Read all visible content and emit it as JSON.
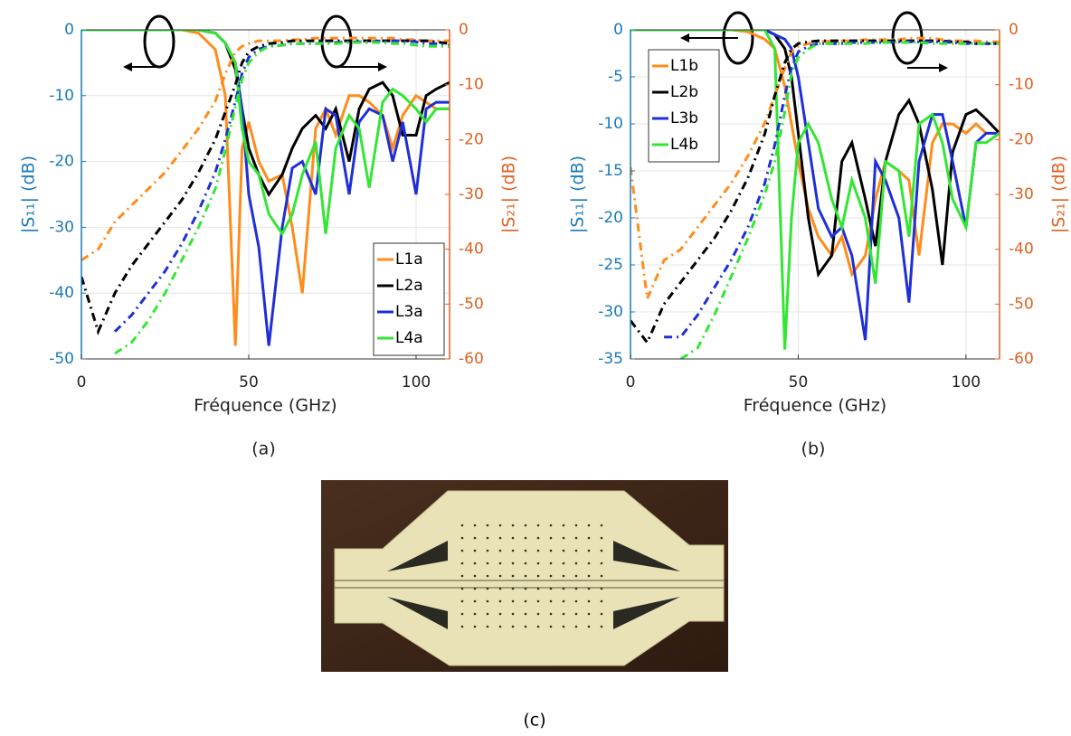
{
  "chart_data": [
    {
      "type": "line",
      "x_label": "Fréquence (GHz)",
      "y_label": "|S₁₁| (dB)",
      "y2_label": "|S₂₁| (dB)",
      "caption": "(a)",
      "xlim": [
        0,
        110
      ],
      "xticks": [
        0,
        50,
        100
      ],
      "ylim": [
        -50,
        0
      ],
      "yticks": [
        -50,
        -40,
        -30,
        -20,
        -10,
        0
      ],
      "y2lim": [
        -60,
        0
      ],
      "y2ticks": [
        -60,
        -50,
        -40,
        -30,
        -20,
        -10,
        0
      ],
      "grid": true,
      "legend": "lower right",
      "y_color": "#1a7ab8",
      "y2_color": "#e0601f",
      "x": [
        0,
        5,
        10,
        15,
        20,
        25,
        30,
        35,
        40,
        43,
        46,
        48,
        50,
        53,
        56,
        60,
        63,
        66,
        70,
        73,
        76,
        80,
        83,
        86,
        90,
        93,
        96,
        100,
        103,
        106,
        110
      ],
      "series": [
        {
          "name": "L1a",
          "color": "#ff8c1a",
          "line_style": "solid",
          "values": [
            0,
            0,
            0,
            0,
            0,
            0,
            0,
            -0.5,
            -3,
            -10,
            -48,
            -18,
            -14,
            -20,
            -23,
            -22,
            -30,
            -40,
            -15,
            -12,
            -16,
            -10,
            -10,
            -11,
            -13,
            -18,
            -13,
            -10,
            -11,
            -12,
            -12
          ]
        },
        {
          "name": "L2a",
          "color": "#000000",
          "line_style": "solid",
          "values": [
            0,
            0,
            0,
            0,
            0,
            0,
            0,
            0,
            -0.5,
            -2,
            -6,
            -12,
            -18,
            -22,
            -25,
            -22,
            -18,
            -15,
            -13,
            -15,
            -12,
            -20,
            -12,
            -9,
            -8,
            -10,
            -16,
            -16,
            -10,
            -9,
            -8
          ]
        },
        {
          "name": "L3a",
          "color": "#1f2fd6",
          "line_style": "solid",
          "values": [
            0,
            0,
            0,
            0,
            0,
            0,
            0,
            0,
            -0.5,
            -2,
            -5,
            -12,
            -25,
            -33,
            -48,
            -30,
            -21,
            -20,
            -25,
            -12,
            -13,
            -25,
            -14,
            -12,
            -13,
            -20,
            -14,
            -25,
            -12,
            -11,
            -11
          ]
        },
        {
          "name": "L4a",
          "color": "#33e633",
          "line_style": "solid",
          "values": [
            0,
            0,
            0,
            0,
            0,
            0,
            0,
            0,
            -0.5,
            -2,
            -5,
            -15,
            -20,
            -22,
            -28,
            -31,
            -28,
            -22,
            -17,
            -31,
            -18,
            -13,
            -15,
            -24,
            -11,
            -9,
            -10,
            -12,
            -14,
            -12,
            -12
          ]
        },
        {
          "color": "#ff8c1a",
          "line_style": "dashed",
          "axis": "y2",
          "values": [
            -42,
            -40,
            -35,
            -32,
            -29,
            -26,
            -22,
            -18,
            -13,
            -8,
            -4,
            -3,
            -2.5,
            -2,
            -2,
            -2,
            -1.8,
            -1.8,
            -1.5,
            -1.5,
            -1.5,
            -1.5,
            -1.5,
            -1.5,
            -1.5,
            -1.5,
            -1.8,
            -1.8,
            -2,
            -2,
            -2
          ]
        },
        {
          "color": "#000000",
          "line_style": "dashed",
          "axis": "y2",
          "values": [
            -45,
            -55,
            -48,
            -43,
            -39,
            -35,
            -31,
            -26,
            -20,
            -15,
            -10,
            -6,
            -4,
            -3,
            -2.5,
            -2.3,
            -2,
            -2,
            -2,
            -2,
            -2,
            -2,
            -2,
            -2,
            -2,
            -2,
            -2,
            -2,
            -2,
            -2.2,
            -2.5
          ]
        },
        {
          "color": "#1f2fd6",
          "line_style": "dashed",
          "axis": "y2",
          "values": [
            null,
            null,
            -55,
            -52,
            -48,
            -44,
            -39,
            -33,
            -26,
            -20,
            -13,
            -8,
            -5,
            -3.5,
            -3,
            -2.8,
            -2.5,
            -2.5,
            -2.5,
            -2.3,
            -2.3,
            -2.2,
            -2.2,
            -2.2,
            -2,
            -2,
            -2,
            -2.2,
            -2.5,
            -2.5,
            -2.8
          ]
        },
        {
          "color": "#33e633",
          "line_style": "dashed",
          "axis": "y2",
          "values": [
            -58,
            null,
            -59,
            -57,
            -53,
            -48,
            -42,
            -36,
            -29,
            -22,
            -14,
            -9,
            -6,
            -4,
            -3,
            -2.8,
            -2.5,
            -2.5,
            -2.5,
            -2.5,
            -2.5,
            -2.3,
            -2.3,
            -2.3,
            -2.3,
            -2.5,
            -2.5,
            -2.8,
            -3,
            -3,
            -3
          ]
        }
      ]
    },
    {
      "type": "line",
      "x_label": "Fréquence (GHz)",
      "y_label": "|S₁₁| (dB)",
      "y2_label": "|S₂₁| (dB)",
      "caption": "(b)",
      "xlim": [
        0,
        110
      ],
      "xticks": [
        0,
        50,
        100
      ],
      "ylim": [
        -35,
        0
      ],
      "yticks": [
        -35,
        -30,
        -25,
        -20,
        -15,
        -10,
        -5,
        0
      ],
      "y2lim": [
        -60,
        0
      ],
      "y2ticks": [
        -60,
        -50,
        -40,
        -30,
        -20,
        -10,
        0
      ],
      "grid": true,
      "legend": "upper left",
      "y_color": "#1a7ab8",
      "y2_color": "#e0601f",
      "x": [
        0,
        5,
        10,
        15,
        20,
        25,
        30,
        35,
        40,
        43,
        46,
        48,
        50,
        53,
        56,
        60,
        63,
        66,
        70,
        73,
        76,
        80,
        83,
        86,
        90,
        93,
        96,
        100,
        103,
        106,
        110
      ],
      "series": [
        {
          "name": "L1b",
          "color": "#ff8c1a",
          "line_style": "solid",
          "values": [
            0,
            0,
            0,
            0,
            0,
            0,
            0,
            -0.2,
            -1,
            -2,
            -6,
            -10,
            -14,
            -19,
            -22,
            -24,
            -22,
            -26,
            -24,
            -18,
            -14,
            -15,
            -16,
            -24,
            -12,
            -10,
            -10,
            -11,
            -10,
            -11,
            -11
          ]
        },
        {
          "name": "L2b",
          "color": "#000000",
          "line_style": "solid",
          "values": [
            0,
            0,
            0,
            0,
            0,
            0,
            0,
            0,
            0,
            -0.5,
            -2,
            -5,
            -11,
            -20,
            -26,
            -24,
            -14,
            -12,
            -18,
            -23,
            -14,
            -9,
            -7.5,
            -10,
            -17,
            -25,
            -13,
            -9,
            -8.5,
            -9.5,
            -11
          ]
        },
        {
          "name": "L3b",
          "color": "#1f2fd6",
          "line_style": "solid",
          "values": [
            0,
            0,
            0,
            0,
            0,
            0,
            0,
            0,
            0,
            -0.5,
            -1,
            -2,
            -5,
            -12,
            -19,
            -22,
            -21,
            -24,
            -33,
            -14,
            -16,
            -20,
            -29,
            -14,
            -9,
            -9,
            -14,
            -21,
            -12,
            -11,
            -11
          ]
        },
        {
          "name": "L4b",
          "color": "#33e633",
          "line_style": "solid",
          "values": [
            0,
            0,
            0,
            0,
            0,
            0,
            0,
            0,
            0,
            -2,
            -34,
            -20,
            -12,
            -10,
            -12,
            -18,
            -21,
            -16,
            -20,
            -27,
            -14,
            -15,
            -22,
            -10,
            -9,
            -12,
            -18,
            -21,
            -12,
            -12,
            -11
          ]
        },
        {
          "color": "#ff8c1a",
          "line_style": "dashed",
          "axis": "y2",
          "values": [
            -25,
            -49,
            -42,
            -40,
            -36,
            -32,
            -28,
            -23,
            -17,
            -12,
            -7,
            -4,
            -3,
            -2.5,
            -2.2,
            -2,
            -2,
            -2,
            -1.8,
            -1.8,
            -1.8,
            -1.8,
            -1.5,
            -1.5,
            -1.5,
            -1.8,
            -2,
            -2,
            -2,
            -2.2,
            -2.2
          ]
        },
        {
          "color": "#000000",
          "line_style": "dashed",
          "axis": "y2",
          "values": [
            -53,
            -57,
            -50,
            -46,
            -42,
            -38,
            -33,
            -27,
            -19,
            -12,
            -6,
            -3.5,
            -2.5,
            -2.2,
            -2,
            -2,
            -2,
            -2,
            -2,
            -2,
            -2,
            -2,
            -2,
            -2,
            -2,
            -2,
            -2.2,
            -2.2,
            -2.5,
            -2.5,
            -2.5
          ]
        },
        {
          "color": "#1f2fd6",
          "line_style": "dashed",
          "axis": "y2",
          "values": [
            null,
            null,
            -56,
            -56,
            -52,
            -47,
            -42,
            -36,
            -28,
            -21,
            -12,
            -7,
            -4,
            -3,
            -2.5,
            -2.5,
            -2.5,
            -2.3,
            -2.3,
            -2.3,
            -2.3,
            -2.2,
            -2.2,
            -2.2,
            -2.2,
            -2.2,
            -2.3,
            -2.5,
            -2.5,
            -2.5,
            -2.5
          ]
        },
        {
          "color": "#33e633",
          "line_style": "dashed",
          "axis": "y2",
          "values": [
            -28,
            null,
            null,
            -60,
            -58,
            -52,
            -45,
            -38,
            -30,
            -24,
            -15,
            -8,
            -5,
            -3.5,
            -2.5,
            -2.5,
            -2.5,
            -2.5,
            -2.5,
            -2.3,
            -2.3,
            -2.3,
            -2.3,
            -2.3,
            -2.5,
            -2.5,
            -2.5,
            -2.5,
            -2.5,
            -2.5,
            -2.5
          ]
        }
      ]
    }
  ],
  "photo_caption": "(c)"
}
